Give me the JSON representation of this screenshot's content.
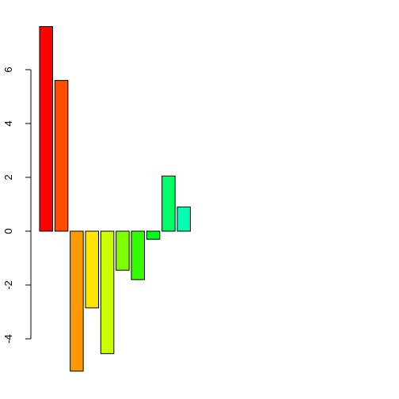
{
  "chart_data": {
    "type": "bar",
    "title": "",
    "xlabel": "",
    "ylabel": "",
    "values": [
      7.6,
      5.6,
      -5.2,
      -2.85,
      -4.55,
      -1.45,
      -1.8,
      -0.3,
      2.05,
      0.9
    ],
    "colors": [
      "#FF0000",
      "#FF4D00",
      "#FF9900",
      "#FFE500",
      "#CCFF00",
      "#80FF00",
      "#33FF00",
      "#00FF19",
      "#00FF66",
      "#00FFB2"
    ],
    "yticks": [
      -4,
      -2,
      0,
      2,
      4,
      6
    ],
    "ytick_labels": [
      "-4",
      "-2",
      "0",
      "2",
      "4",
      "6"
    ],
    "ylim": [
      -5.2,
      7.6
    ],
    "grid": false,
    "legend": "none"
  }
}
